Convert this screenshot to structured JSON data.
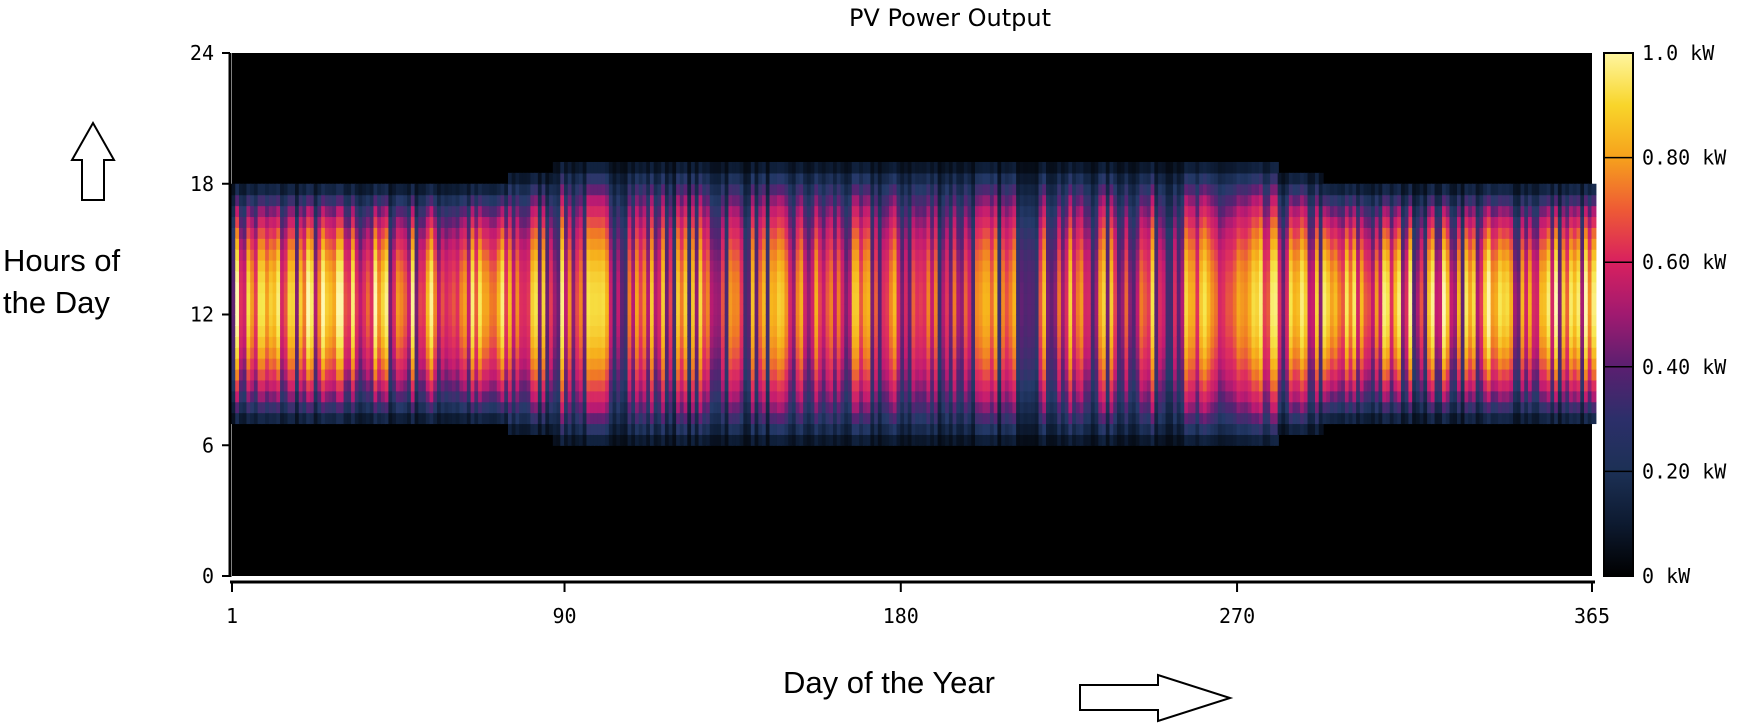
{
  "chart_data": {
    "type": "heatmap",
    "title": "PV Power Output",
    "xlabel": "Day of the Year",
    "ylabel_lines": [
      "Hours of",
      "the Day"
    ],
    "x_range": [
      1,
      365
    ],
    "y_range": [
      0,
      24
    ],
    "x_ticks": [
      "1",
      "90",
      "180",
      "270",
      "365"
    ],
    "y_ticks": [
      "0",
      "6",
      "12",
      "18",
      "24"
    ],
    "colorbar": {
      "range_kw": [
        0,
        1.0
      ],
      "labels": [
        "0 kW",
        "0.20 kW",
        "0.40 kW",
        "0.60 kW",
        "0.80 kW",
        "1.0 kW"
      ],
      "colormap": [
        "#000000",
        "#0f1f3a",
        "#253a6a",
        "#5a2273",
        "#c01a72",
        "#e0305d",
        "#f07a25",
        "#f7b51c",
        "#f7e64a",
        "#fff7b0"
      ]
    },
    "daylight_hours": {
      "winter_start_end": [
        7,
        18.5
      ],
      "summer_start_end": [
        6,
        19.5
      ]
    },
    "peak_hour": 12.5,
    "typical_peak_kw": {
      "winter": 0.85,
      "summer": 0.65
    }
  },
  "annotations": {
    "up_arrow": "arrow-up",
    "right_arrow": "arrow-right"
  }
}
